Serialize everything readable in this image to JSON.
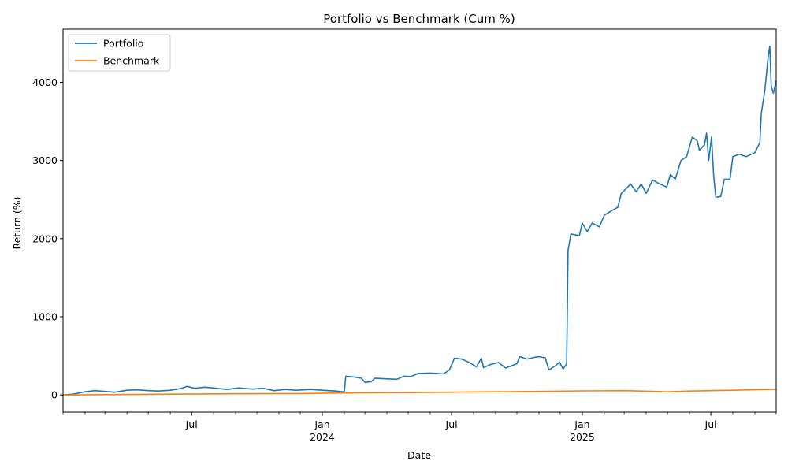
{
  "chart_data": {
    "type": "line",
    "title": "Portfolio vs Benchmark (Cum %)",
    "xlabel": "Date",
    "ylabel": "Return (%)",
    "xlim": [
      "2023-01-01",
      "2025-10-01"
    ],
    "ylim": [
      -220,
      4680
    ],
    "grid": false,
    "legend_position": "top-left",
    "y_ticks": [
      0,
      1000,
      2000,
      3000,
      4000
    ],
    "x_major_ticks": [
      {
        "date": "2023-07-01",
        "label": "Jul",
        "sublabel": ""
      },
      {
        "date": "2024-01-01",
        "label": "Jan",
        "sublabel": "2024"
      },
      {
        "date": "2024-07-01",
        "label": "Jul",
        "sublabel": ""
      },
      {
        "date": "2025-01-01",
        "label": "Jan",
        "sublabel": "2025"
      },
      {
        "date": "2025-07-01",
        "label": "Jul",
        "sublabel": ""
      }
    ],
    "x_minor_ticks": [
      "2023-01-01",
      "2023-02-01",
      "2023-03-01",
      "2023-04-01",
      "2023-05-01",
      "2023-06-01",
      "2023-08-01",
      "2023-09-01",
      "2023-10-01",
      "2023-11-01",
      "2023-12-01",
      "2024-02-01",
      "2024-03-01",
      "2024-04-01",
      "2024-05-01",
      "2024-06-01",
      "2024-08-01",
      "2024-09-01",
      "2024-10-01",
      "2024-11-01",
      "2024-12-01",
      "2025-02-01",
      "2025-03-01",
      "2025-04-01",
      "2025-05-01",
      "2025-06-01",
      "2025-08-01",
      "2025-09-01",
      "2025-10-01"
    ],
    "series": [
      {
        "name": "Portfolio",
        "color": "#1f77b4",
        "points": [
          [
            "2023-01-01",
            0
          ],
          [
            "2023-01-15",
            10
          ],
          [
            "2023-02-01",
            40
          ],
          [
            "2023-02-15",
            55
          ],
          [
            "2023-03-01",
            45
          ],
          [
            "2023-03-15",
            35
          ],
          [
            "2023-04-01",
            60
          ],
          [
            "2023-04-15",
            65
          ],
          [
            "2023-05-01",
            55
          ],
          [
            "2023-05-15",
            50
          ],
          [
            "2023-06-01",
            60
          ],
          [
            "2023-06-15",
            80
          ],
          [
            "2023-06-25",
            110
          ],
          [
            "2023-07-05",
            85
          ],
          [
            "2023-07-20",
            100
          ],
          [
            "2023-08-01",
            90
          ],
          [
            "2023-08-20",
            70
          ],
          [
            "2023-09-05",
            90
          ],
          [
            "2023-09-25",
            75
          ],
          [
            "2023-10-10",
            85
          ],
          [
            "2023-10-25",
            55
          ],
          [
            "2023-11-10",
            70
          ],
          [
            "2023-11-25",
            60
          ],
          [
            "2023-12-15",
            70
          ],
          [
            "2024-01-01",
            60
          ],
          [
            "2024-01-20",
            50
          ],
          [
            "2024-01-30",
            40
          ],
          [
            "2024-02-01",
            45
          ],
          [
            "2024-02-03",
            240
          ],
          [
            "2024-02-15",
            230
          ],
          [
            "2024-02-25",
            215
          ],
          [
            "2024-03-01",
            160
          ],
          [
            "2024-03-10",
            170
          ],
          [
            "2024-03-15",
            215
          ],
          [
            "2024-04-01",
            205
          ],
          [
            "2024-04-15",
            200
          ],
          [
            "2024-04-25",
            240
          ],
          [
            "2024-05-05",
            235
          ],
          [
            "2024-05-15",
            275
          ],
          [
            "2024-06-01",
            280
          ],
          [
            "2024-06-20",
            270
          ],
          [
            "2024-06-28",
            320
          ],
          [
            "2024-07-05",
            470
          ],
          [
            "2024-07-15",
            460
          ],
          [
            "2024-07-25",
            420
          ],
          [
            "2024-08-05",
            360
          ],
          [
            "2024-08-12",
            470
          ],
          [
            "2024-08-15",
            350
          ],
          [
            "2024-08-25",
            390
          ],
          [
            "2024-09-05",
            415
          ],
          [
            "2024-09-15",
            345
          ],
          [
            "2024-10-01",
            400
          ],
          [
            "2024-10-05",
            490
          ],
          [
            "2024-10-15",
            460
          ],
          [
            "2024-10-25",
            480
          ],
          [
            "2024-11-01",
            490
          ],
          [
            "2024-11-10",
            475
          ],
          [
            "2024-11-15",
            320
          ],
          [
            "2024-11-25",
            380
          ],
          [
            "2024-11-30",
            420
          ],
          [
            "2024-12-05",
            330
          ],
          [
            "2024-12-10",
            400
          ],
          [
            "2024-12-12",
            1850
          ],
          [
            "2024-12-16",
            2060
          ],
          [
            "2024-12-28",
            2040
          ],
          [
            "2025-01-01",
            2200
          ],
          [
            "2025-01-08",
            2090
          ],
          [
            "2025-01-15",
            2200
          ],
          [
            "2025-01-25",
            2150
          ],
          [
            "2025-02-01",
            2300
          ],
          [
            "2025-02-10",
            2350
          ],
          [
            "2025-02-20",
            2400
          ],
          [
            "2025-02-25",
            2580
          ],
          [
            "2025-03-05",
            2650
          ],
          [
            "2025-03-10",
            2700
          ],
          [
            "2025-03-18",
            2600
          ],
          [
            "2025-03-25",
            2700
          ],
          [
            "2025-04-01",
            2580
          ],
          [
            "2025-04-10",
            2750
          ],
          [
            "2025-04-20",
            2700
          ],
          [
            "2025-04-30",
            2660
          ],
          [
            "2025-05-05",
            2820
          ],
          [
            "2025-05-12",
            2760
          ],
          [
            "2025-05-20",
            3000
          ],
          [
            "2025-05-28",
            3050
          ],
          [
            "2025-06-05",
            3300
          ],
          [
            "2025-06-12",
            3250
          ],
          [
            "2025-06-15",
            3130
          ],
          [
            "2025-06-22",
            3200
          ],
          [
            "2025-06-25",
            3350
          ],
          [
            "2025-06-28",
            3000
          ],
          [
            "2025-07-02",
            3300
          ],
          [
            "2025-07-05",
            2800
          ],
          [
            "2025-07-08",
            2530
          ],
          [
            "2025-07-15",
            2540
          ],
          [
            "2025-07-20",
            2760
          ],
          [
            "2025-07-28",
            2760
          ],
          [
            "2025-08-01",
            3050
          ],
          [
            "2025-08-10",
            3080
          ],
          [
            "2025-08-20",
            3050
          ],
          [
            "2025-09-01",
            3100
          ],
          [
            "2025-09-08",
            3230
          ],
          [
            "2025-09-10",
            3600
          ],
          [
            "2025-09-15",
            3900
          ],
          [
            "2025-09-20",
            4350
          ],
          [
            "2025-09-22",
            4460
          ],
          [
            "2025-09-24",
            3950
          ],
          [
            "2025-09-27",
            3860
          ],
          [
            "2025-10-01",
            4020
          ]
        ]
      },
      {
        "name": "Benchmark",
        "color": "#ff7f0e",
        "points": [
          [
            "2023-01-01",
            0
          ],
          [
            "2023-03-15",
            5
          ],
          [
            "2023-06-01",
            10
          ],
          [
            "2023-09-01",
            15
          ],
          [
            "2023-12-01",
            18
          ],
          [
            "2024-02-01",
            25
          ],
          [
            "2024-05-01",
            30
          ],
          [
            "2024-08-01",
            38
          ],
          [
            "2024-11-01",
            45
          ],
          [
            "2025-01-01",
            52
          ],
          [
            "2025-03-01",
            55
          ],
          [
            "2025-04-15",
            45
          ],
          [
            "2025-05-01",
            40
          ],
          [
            "2025-06-01",
            50
          ],
          [
            "2025-08-01",
            60
          ],
          [
            "2025-10-01",
            72
          ]
        ]
      }
    ]
  }
}
